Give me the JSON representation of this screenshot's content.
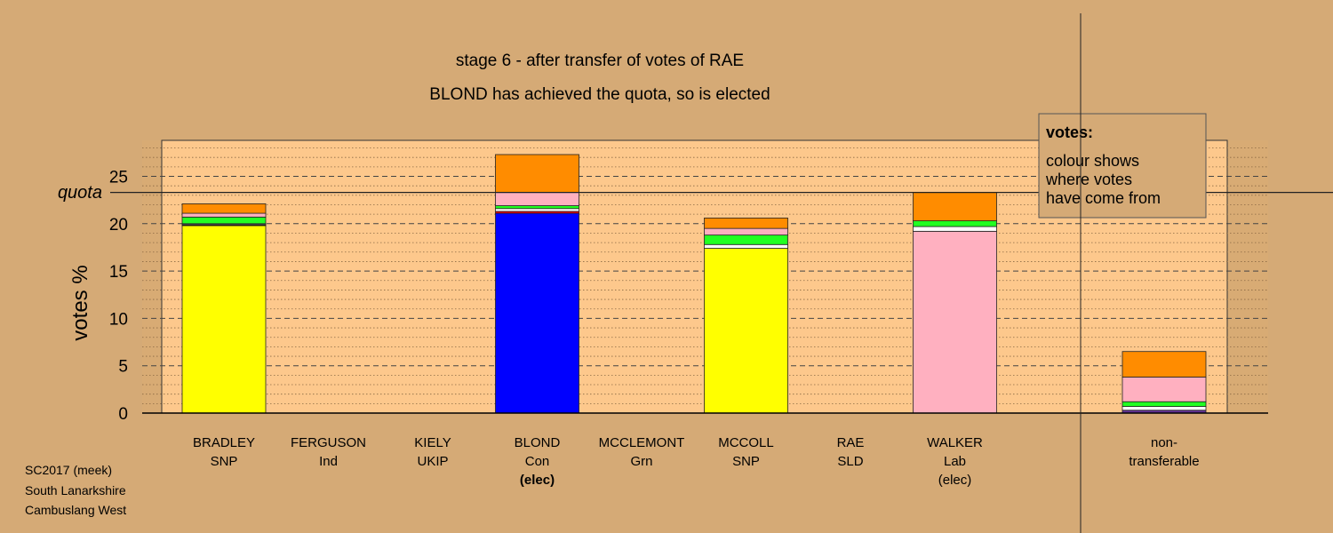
{
  "chart_data": {
    "type": "bar",
    "stacked": true,
    "title": "stage 6 - after transfer of votes of RAE",
    "subtitle": "BLOND has achieved the quota, so is elected",
    "ylabel": "votes %",
    "ylim": [
      0,
      28.8
    ],
    "yticks": [
      0,
      5,
      10,
      15,
      20,
      25
    ],
    "quota": 23.3,
    "quota_label": "quota",
    "legend": {
      "title": "votes:",
      "lines": [
        "colour shows",
        "where votes",
        "have come from"
      ],
      "placement": "top-right"
    },
    "candidates": [
      {
        "name": "BRADLEY",
        "party": "SNP",
        "note": "",
        "segments": [
          {
            "color": "#ffff00",
            "value": 19.8
          },
          {
            "color": "#000000",
            "value": 0.1
          },
          {
            "color": "#ffffff",
            "value": 0.1
          },
          {
            "color": "#22ff22",
            "value": 0.7
          },
          {
            "color": "#ffb0c0",
            "value": 0.4
          },
          {
            "color": "#ff8c00",
            "value": 1.0
          }
        ]
      },
      {
        "name": "FERGUSON",
        "party": "Ind",
        "note": "",
        "segments": []
      },
      {
        "name": "KIELY",
        "party": "UKIP",
        "note": "",
        "segments": []
      },
      {
        "name": "BLOND",
        "party": "Con",
        "note": "(elec)",
        "note_bold": true,
        "segments": [
          {
            "color": "#0000ff",
            "value": 21.1
          },
          {
            "color": "#ff0000",
            "value": 0.2
          },
          {
            "color": "#ffffff",
            "value": 0.3
          },
          {
            "color": "#22ff22",
            "value": 0.3
          },
          {
            "color": "#ffb0c0",
            "value": 1.4
          },
          {
            "color": "#ff8c00",
            "value": 4.0
          }
        ]
      },
      {
        "name": "MCCLEMONT",
        "party": "Grn",
        "note": "",
        "segments": []
      },
      {
        "name": "MCCOLL",
        "party": "SNP",
        "note": "",
        "segments": [
          {
            "color": "#ffff00",
            "value": 17.4
          },
          {
            "color": "#ffffff",
            "value": 0.4
          },
          {
            "color": "#22ff22",
            "value": 1.0
          },
          {
            "color": "#ffb0c0",
            "value": 0.7
          },
          {
            "color": "#ff8c00",
            "value": 1.1
          }
        ]
      },
      {
        "name": "RAE",
        "party": "SLD",
        "note": "",
        "segments": []
      },
      {
        "name": "WALKER",
        "party": "Lab",
        "note": "(elec)",
        "segments": [
          {
            "color": "#ffb0c0",
            "value": 19.2
          },
          {
            "color": "#ffffff",
            "value": 0.5
          },
          {
            "color": "#22ff22",
            "value": 0.6
          },
          {
            "color": "#ff8c00",
            "value": 3.0
          }
        ]
      }
    ],
    "non_transferable": {
      "label_lines": [
        "non-",
        "transferable"
      ],
      "segments": [
        {
          "color": "#663399",
          "value": 0.3
        },
        {
          "color": "#ffffff",
          "value": 0.4
        },
        {
          "color": "#22ff22",
          "value": 0.5
        },
        {
          "color": "#ffb0c0",
          "value": 2.6
        },
        {
          "color": "#ff8c00",
          "value": 2.7
        }
      ]
    }
  },
  "footer": [
    "SC2017 (meek)",
    "South Lanarkshire",
    "Cambuslang West"
  ],
  "colors": {
    "background": "#d5aa76",
    "plot_panel": "#fdc88c",
    "outside_band": "#d8ab74"
  }
}
